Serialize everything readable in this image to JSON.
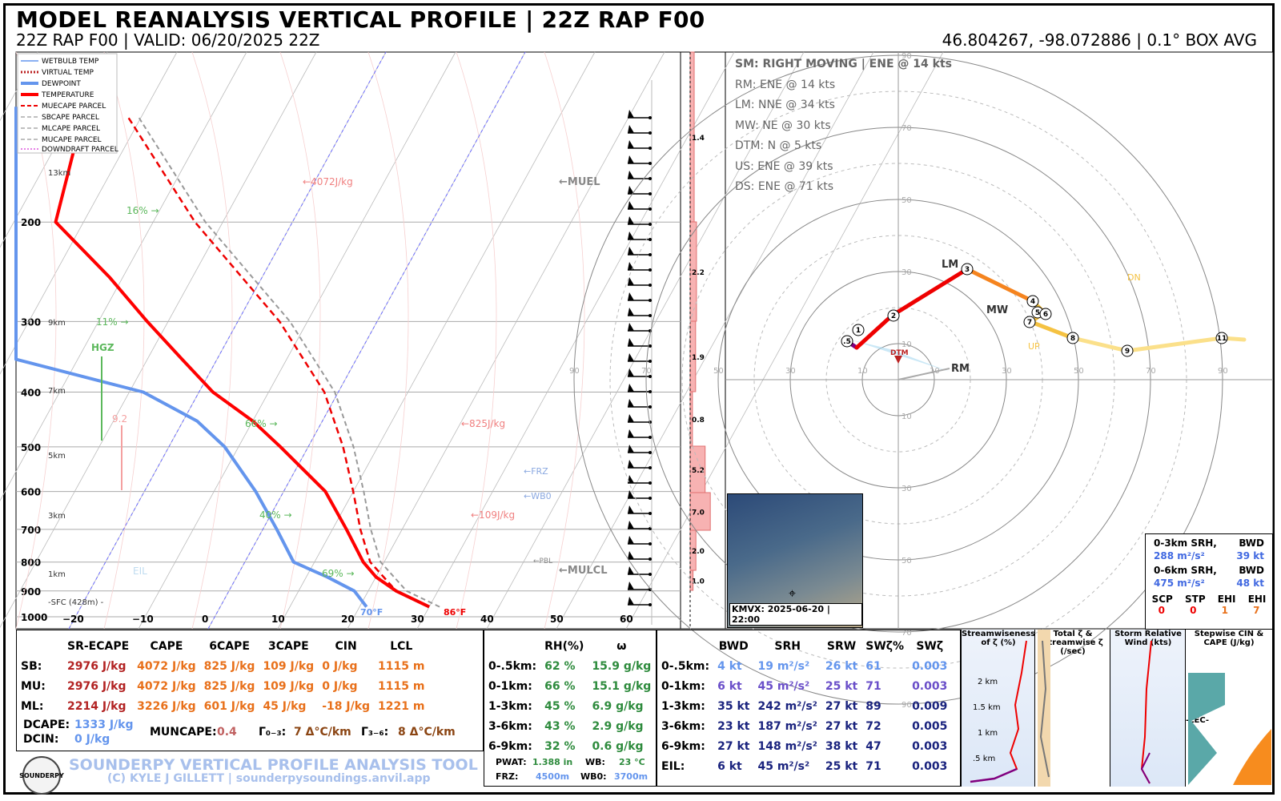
{
  "header": {
    "title": "MODEL REANALYSIS VERTICAL PROFILE | 22Z RAP F00",
    "subtitle_left": "22Z RAP F00 | VALID: 06/20/2025 22Z",
    "subtitle_right": "46.804267, -98.072886 | 0.1° BOX AVG"
  },
  "legend": [
    "WETBULB TEMP",
    "VIRTUAL TEMP",
    "DEWPOINT",
    "TEMPERATURE",
    "MUECAPE PARCEL",
    "SBCAPE PARCEL",
    "MLCAPE PARCEL",
    "MUCAPE PARCEL",
    "DOWNDRAFT PARCEL"
  ],
  "skewt_labels": {
    "cape1": "←4072J/kg",
    "cape2": "←825J/kg",
    "cape3": "←109J/kg",
    "muel": "←MUEL",
    "frz": "←FRZ",
    "wb0": "←WB0",
    "pbl": "←PBL",
    "lcl": "←MULCL",
    "hgz": "HGZ",
    "hgz_val": "9.2",
    "eil": "EIL",
    "rh1": "16% →",
    "rh2": "11% →",
    "rh3": "66% →",
    "rh4": "40% →",
    "rh5": "69% →",
    "sfc": "-SFC (428m) -",
    "td_sfc": "70°F",
    "t_sfc": "86°F",
    "km13": "13km",
    "km9": "9km",
    "km7": "7km",
    "km5": "5km",
    "km3": "3km",
    "km1": "1km"
  },
  "chart_data": [
    {
      "type": "line",
      "title": "Skew-T",
      "pressure_ticks": [
        "200",
        "300",
        "400",
        "500",
        "600",
        "700",
        "800",
        "900",
        "1000"
      ],
      "temp_ticks": [
        "−20",
        "−10",
        "0",
        "10",
        "20",
        "30",
        "40",
        "50",
        "60"
      ],
      "series": [
        {
          "name": "TEMPERATURE",
          "p": [
            960,
            900,
            850,
            800,
            700,
            600,
            500,
            450,
            400,
            350,
            300,
            250,
            200,
            150,
            125
          ],
          "t": [
            30,
            24,
            20,
            17,
            12,
            6,
            -4,
            -10,
            -18,
            -25,
            -33,
            -42,
            -54,
            -57,
            -57
          ]
        },
        {
          "name": "DEWPOINT",
          "p": [
            960,
            900,
            850,
            800,
            700,
            600,
            500,
            450,
            400,
            350,
            300,
            250,
            200,
            150,
            125
          ],
          "t": [
            21,
            18,
            13,
            7,
            2,
            -4,
            -12,
            -18,
            -28,
            -55,
            -62,
            -66,
            -64,
            -78,
            -85
          ]
        }
      ]
    },
    {
      "type": "bar",
      "title": "Wind shear bars",
      "values": [
        1.4,
        2.2,
        1.9,
        0.8,
        5.2,
        7.0,
        2.0,
        1.0
      ]
    },
    {
      "type": "line",
      "title": "Hodograph",
      "ring_labels": [
        "10",
        "30",
        "50",
        "70",
        "90"
      ],
      "points": [
        "0.5",
        "1",
        "2",
        "3",
        "4",
        "5",
        "6",
        "7",
        "8",
        "9",
        "11"
      ]
    }
  ],
  "hodo_legend": {
    "title": "SM: RIGHT MOVING | ENE @ 14 kts",
    "rows": [
      "RM: ENE @ 14 kts",
      "LM: NNE @ 34 kts",
      "MW: NE @ 30 kts",
      "DTM: N @ 5 kts",
      "US: ENE @ 39 kts",
      "DS: ENE @ 71 kts"
    ],
    "labels": {
      "lm": "LM",
      "mw": "MW",
      "rm": "RM",
      "dtm": "DTM",
      "up": "UP",
      "dn": "DN"
    }
  },
  "srh_box": {
    "r1": "0-3km SRH,",
    "r1b": "BWD",
    "r1v": "288 m²/s²",
    "r1w": "39 kt",
    "r2": "0-6km SRH,",
    "r2b": "BWD",
    "r2v": "475 m²/s²",
    "r2w": "48 kt",
    "h": [
      "SCP",
      "STP",
      "EHI",
      "EHI"
    ],
    "v": [
      "0",
      "0",
      "1",
      "7"
    ]
  },
  "radar_caption": "KMVX: 2025-06-20 | 22:00",
  "thermo_table": {
    "headers": [
      "",
      "SR-ECAPE",
      "CAPE",
      "6CAPE",
      "3CAPE",
      "CIN",
      "LCL"
    ],
    "rows": [
      [
        "SB:",
        "2976 J/kg",
        "4072 J/kg",
        "825 J/kg",
        "109 J/kg",
        "0 J/kg",
        "1115 m"
      ],
      [
        "MU:",
        "2976 J/kg",
        "4072 J/kg",
        "825 J/kg",
        "109 J/kg",
        "0 J/kg",
        "1115 m"
      ],
      [
        "ML:",
        "2214 J/kg",
        "3226 J/kg",
        "601 J/kg",
        "45 J/kg",
        "-18 J/kg",
        "1221 m"
      ]
    ],
    "dcape_label": "DCAPE:",
    "dcape": "1333 J/kg",
    "dcin_label": "DCIN:",
    "dcin": "0 J/kg",
    "muncape_label": "MUNCAPE:",
    "muncape": "0.4",
    "lr03_label": "Γ₀₋₃:",
    "lr03": "7 Δ°C/km",
    "lr36_label": "Γ₃₋₆:",
    "lr36": "8 Δ°C/km"
  },
  "moisture_table": {
    "headers": [
      "",
      "RH(%)",
      "ω"
    ],
    "rows": [
      [
        "0-.5km:",
        "62 %",
        "15.9 g/kg"
      ],
      [
        "0-1km:",
        "66 %",
        "15.1 g/kg"
      ],
      [
        "1-3km:",
        "45 %",
        "6.9 g/kg"
      ],
      [
        "3-6km:",
        "43 %",
        "2.9 g/kg"
      ],
      [
        "6-9km:",
        "32 %",
        "0.6 g/kg"
      ]
    ],
    "pwat_label": "PWAT:",
    "pwat": "1.388 in",
    "wb_label": "WB:",
    "wb": "23 °C",
    "frz_label": "FRZ:",
    "frz": "4500m",
    "wb0_label": "WB0:",
    "wb0": "3700m"
  },
  "kinematic_table": {
    "headers": [
      "",
      "BWD",
      "SRH",
      "SRW",
      "SWζ%",
      "SWζ"
    ],
    "rows": [
      [
        "0-.5km:",
        "4 kt",
        "19 m²/s²",
        "26 kt",
        "61",
        "0.003"
      ],
      [
        "0-1km:",
        "6 kt",
        "45 m²/s²",
        "25 kt",
        "71",
        "0.003"
      ],
      [
        "1-3km:",
        "35 kt",
        "242 m²/s²",
        "27 kt",
        "89",
        "0.009"
      ],
      [
        "3-6km:",
        "23 kt",
        "187 m²/s²",
        "27 kt",
        "72",
        "0.005"
      ],
      [
        "6-9km:",
        "27 kt",
        "148 m²/s²",
        "38 kt",
        "47",
        "0.003"
      ],
      [
        "EIL:",
        "6 kt",
        "45 m²/s²",
        "25 kt",
        "71",
        "0.003"
      ]
    ]
  },
  "mini_charts": {
    "c1": "Streamwiseness of ζ (%)",
    "c2": "Total ζ & Streamwise ζ (/sec)",
    "c3": "Storm Relative Wind (kts)",
    "c4": "Stepwise CIN & CAPE (J/kg)",
    "km": [
      "2 km",
      "1.5 km",
      "1 km",
      ".5 km"
    ],
    "lec": "-LEC-"
  },
  "footer": {
    "tool": "SOUNDERPY VERTICAL PROFILE ANALYSIS TOOL",
    "credit": "(C) KYLE J GILLETT | sounderpysoundings.anvil.app",
    "logo": "SOUNDERPY"
  }
}
